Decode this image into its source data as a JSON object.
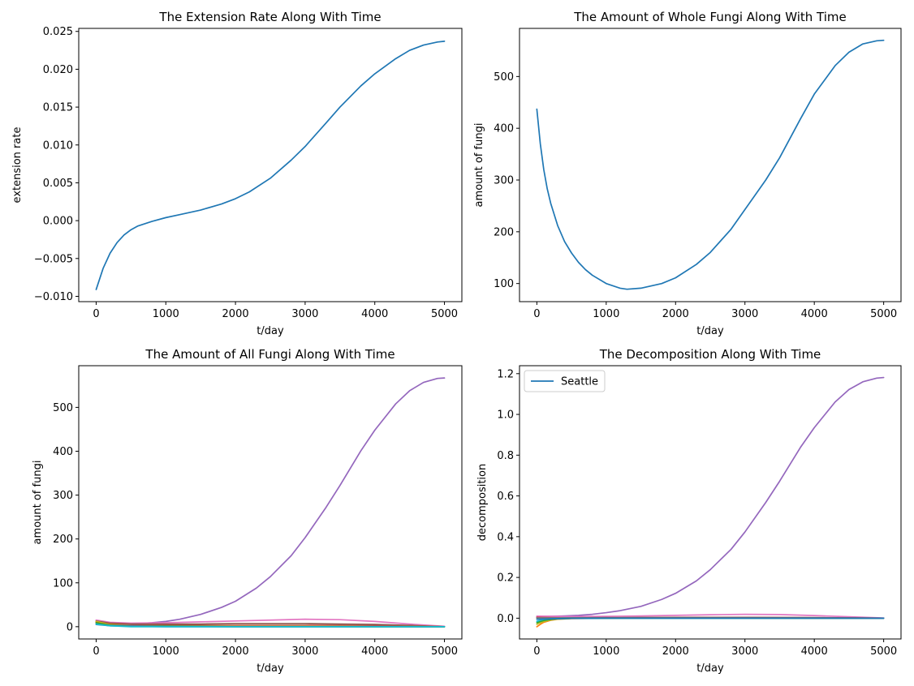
{
  "figure": {
    "background": "#ffffff"
  },
  "palette": [
    "#1f77b4",
    "#ff7f0e",
    "#2ca02c",
    "#d62728",
    "#9467bd",
    "#8c564b",
    "#e377c2",
    "#7f7f7f",
    "#bcbd22",
    "#17becf"
  ],
  "chart_data": [
    {
      "id": "ext",
      "type": "line",
      "title": "The Extension Rate Along With Time",
      "xlabel": "t/day",
      "ylabel": "extension rate",
      "xlim": [
        -250,
        5250
      ],
      "ylim": [
        -0.0107,
        0.0254
      ],
      "xticks": [
        0,
        1000,
        2000,
        3000,
        4000,
        5000
      ],
      "xtick_labels": [
        "0",
        "1000",
        "2000",
        "3000",
        "4000",
        "5000"
      ],
      "yticks": [
        -0.01,
        -0.005,
        0.0,
        0.005,
        0.01,
        0.015,
        0.02,
        0.025
      ],
      "ytick_labels": [
        "−0.010",
        "−0.005",
        "0.000",
        "0.005",
        "0.010",
        "0.015",
        "0.020",
        "0.025"
      ],
      "series": [
        {
          "color": "#1f77b4",
          "x": [
            0,
            100,
            200,
            300,
            400,
            500,
            600,
            800,
            1000,
            1200,
            1500,
            1800,
            2000,
            2200,
            2500,
            2800,
            3000,
            3300,
            3500,
            3800,
            4000,
            4300,
            4500,
            4700,
            4900,
            5000
          ],
          "y": [
            -0.0091,
            -0.0063,
            -0.0043,
            -0.0029,
            -0.0019,
            -0.0012,
            -0.0007,
            -0.0001,
            0.0004,
            0.0008,
            0.0014,
            0.0022,
            0.0029,
            0.0038,
            0.0056,
            0.008,
            0.0098,
            0.0129,
            0.015,
            0.0178,
            0.0194,
            0.0214,
            0.0225,
            0.0232,
            0.0236,
            0.0237
          ]
        }
      ]
    },
    {
      "id": "whole",
      "type": "line",
      "title": "The Amount of Whole Fungi Along With Time",
      "xlabel": "t/day",
      "ylabel": "amount of fungi",
      "xlim": [
        -250,
        5250
      ],
      "ylim": [
        65,
        593
      ],
      "xticks": [
        0,
        1000,
        2000,
        3000,
        4000,
        5000
      ],
      "xtick_labels": [
        "0",
        "1000",
        "2000",
        "3000",
        "4000",
        "5000"
      ],
      "yticks": [
        100,
        200,
        300,
        400,
        500
      ],
      "ytick_labels": [
        "100",
        "200",
        "300",
        "400",
        "500"
      ],
      "series": [
        {
          "color": "#1f77b4",
          "x": [
            0,
            50,
            100,
            150,
            200,
            300,
            400,
            500,
            600,
            700,
            800,
            1000,
            1200,
            1300,
            1500,
            1800,
            2000,
            2300,
            2500,
            2800,
            3000,
            3300,
            3500,
            3800,
            4000,
            4300,
            4500,
            4700,
            4900,
            5000
          ],
          "y": [
            437,
            370,
            320,
            283,
            255,
            212,
            181,
            159,
            141,
            127,
            116,
            100,
            91,
            89,
            91,
            100,
            111,
            137,
            160,
            205,
            243,
            300,
            343,
            418,
            466,
            521,
            547,
            563,
            569,
            570
          ]
        }
      ]
    },
    {
      "id": "all",
      "type": "line",
      "title": "The Amount of All Fungi Along With Time",
      "xlabel": "t/day",
      "ylabel": "amount of fungi",
      "xlim": [
        -250,
        5250
      ],
      "ylim": [
        -28,
        595
      ],
      "xticks": [
        0,
        1000,
        2000,
        3000,
        4000,
        5000
      ],
      "xtick_labels": [
        "0",
        "1000",
        "2000",
        "3000",
        "4000",
        "5000"
      ],
      "yticks": [
        0,
        100,
        200,
        300,
        400,
        500
      ],
      "ytick_labels": [
        "0",
        "100",
        "200",
        "300",
        "400",
        "500"
      ],
      "series": [
        {
          "color": "#9467bd",
          "x": [
            0,
            200,
            400,
            600,
            800,
            1000,
            1200,
            1500,
            1800,
            2000,
            2300,
            2500,
            2800,
            3000,
            3300,
            3500,
            3800,
            4000,
            4300,
            4500,
            4700,
            4900,
            5000
          ],
          "y": [
            8,
            6,
            6,
            7,
            9,
            12,
            17,
            28,
            44,
            58,
            88,
            114,
            162,
            203,
            272,
            322,
            401,
            448,
            508,
            538,
            557,
            566,
            567
          ]
        },
        {
          "color": "#e377c2",
          "x": [
            0,
            200,
            500,
            1000,
            1500,
            2000,
            2500,
            3000,
            3500,
            4000,
            4500,
            5000
          ],
          "y": [
            15,
            10,
            8,
            9,
            11,
            13,
            15,
            17,
            16,
            12,
            6,
            1
          ]
        },
        {
          "color": "#8c564b",
          "x": [
            0,
            200,
            500,
            1000,
            1500,
            2000,
            2500,
            3000,
            3500,
            4000,
            4500,
            5000
          ],
          "y": [
            13,
            8,
            6,
            6,
            6,
            7,
            7,
            7,
            6,
            5,
            3,
            0
          ]
        },
        {
          "color": "#d62728",
          "x": [
            0,
            200,
            500,
            1000,
            2000,
            3000,
            4000,
            5000
          ],
          "y": [
            11,
            6,
            4,
            3,
            3,
            3,
            2,
            0
          ]
        },
        {
          "color": "#bcbd22",
          "x": [
            0,
            200,
            500,
            1000,
            2000,
            3000,
            4000,
            5000
          ],
          "y": [
            12,
            5,
            3,
            2,
            2,
            2,
            1,
            0
          ]
        },
        {
          "color": "#7f7f7f",
          "x": [
            0,
            200,
            500,
            1000,
            2000,
            3000,
            4000,
            5000
          ],
          "y": [
            9,
            4,
            3,
            2,
            2,
            2,
            1,
            0
          ]
        },
        {
          "color": "#ff7f0e",
          "x": [
            0,
            200,
            500,
            1000,
            2000,
            3000,
            4000,
            5000
          ],
          "y": [
            10,
            3,
            1,
            1,
            1,
            1,
            0,
            0
          ]
        },
        {
          "color": "#2ca02c",
          "x": [
            0,
            200,
            500,
            1000,
            2000,
            3000,
            4000,
            5000
          ],
          "y": [
            9,
            3,
            1,
            1,
            0,
            0,
            0,
            0
          ]
        },
        {
          "color": "#1f77b4",
          "x": [
            0,
            200,
            500,
            1000,
            2000,
            3000,
            4000,
            5000
          ],
          "y": [
            5,
            2,
            1,
            0,
            0,
            0,
            0,
            0
          ]
        },
        {
          "color": "#17becf",
          "x": [
            0,
            200,
            500,
            1000,
            2000,
            3000,
            4000,
            5000
          ],
          "y": [
            6,
            2,
            0,
            0,
            0,
            0,
            0,
            0
          ]
        }
      ]
    },
    {
      "id": "decomp",
      "type": "line",
      "title": "The Decomposition Along With Time",
      "xlabel": "t/day",
      "ylabel": "decomposition",
      "xlim": [
        -250,
        5250
      ],
      "ylim": [
        -0.102,
        1.239
      ],
      "xticks": [
        0,
        1000,
        2000,
        3000,
        4000,
        5000
      ],
      "xtick_labels": [
        "0",
        "1000",
        "2000",
        "3000",
        "4000",
        "5000"
      ],
      "yticks": [
        0.0,
        0.2,
        0.4,
        0.6,
        0.8,
        1.0,
        1.2
      ],
      "ytick_labels": [
        "0.0",
        "0.2",
        "0.4",
        "0.6",
        "0.8",
        "1.0",
        "1.2"
      ],
      "legend": {
        "position": "upper-left",
        "entries": [
          {
            "label": "Seattle",
            "color": "#1f77b4"
          }
        ]
      },
      "series": [
        {
          "color": "#9467bd",
          "x": [
            0,
            200,
            400,
            600,
            800,
            1000,
            1200,
            1500,
            1800,
            2000,
            2300,
            2500,
            2800,
            3000,
            3300,
            3500,
            3800,
            4000,
            4300,
            4500,
            4700,
            4900,
            5000
          ],
          "y": [
            0.008,
            0.009,
            0.011,
            0.014,
            0.019,
            0.027,
            0.037,
            0.058,
            0.092,
            0.122,
            0.183,
            0.238,
            0.338,
            0.423,
            0.568,
            0.672,
            0.838,
            0.935,
            1.061,
            1.122,
            1.16,
            1.178,
            1.181
          ]
        },
        {
          "color": "#e377c2",
          "x": [
            0,
            500,
            1000,
            1500,
            2000,
            2500,
            3000,
            3500,
            4000,
            4500,
            5000
          ],
          "y": [
            0.01,
            0.008,
            0.009,
            0.011,
            0.014,
            0.017,
            0.019,
            0.018,
            0.013,
            0.007,
            0.001
          ]
        },
        {
          "color": "#ff7f0e",
          "x": [
            0,
            50,
            100,
            200,
            300,
            500,
            1000,
            2000,
            3000,
            4000,
            5000
          ],
          "y": [
            -0.042,
            -0.03,
            -0.02,
            -0.01,
            -0.005,
            -0.002,
            0.0,
            0.001,
            0.001,
            0.0,
            0.0
          ]
        },
        {
          "color": "#bcbd22",
          "x": [
            0,
            50,
            100,
            200,
            300,
            500,
            1000,
            2000,
            3000,
            4000,
            5000
          ],
          "y": [
            -0.03,
            -0.022,
            -0.016,
            -0.008,
            -0.004,
            -0.001,
            0.0,
            0.001,
            0.001,
            0.0,
            0.0
          ]
        },
        {
          "color": "#2ca02c",
          "x": [
            0,
            50,
            100,
            200,
            300,
            500,
            1000,
            2000,
            3000,
            4000,
            5000
          ],
          "y": [
            -0.022,
            -0.016,
            -0.011,
            -0.006,
            -0.003,
            -0.001,
            0.0,
            0.0,
            0.0,
            0.0,
            0.0
          ]
        },
        {
          "color": "#d62728",
          "x": [
            0,
            100,
            300,
            500,
            1000,
            2000,
            3000,
            4000,
            5000
          ],
          "y": [
            0.004,
            0.003,
            0.002,
            0.002,
            0.002,
            0.003,
            0.003,
            0.002,
            0.0
          ]
        },
        {
          "color": "#8c564b",
          "x": [
            0,
            100,
            300,
            500,
            1000,
            2000,
            3000,
            4000,
            5000
          ],
          "y": [
            0.002,
            0.002,
            0.002,
            0.002,
            0.003,
            0.004,
            0.004,
            0.003,
            0.0
          ]
        },
        {
          "color": "#7f7f7f",
          "x": [
            0,
            500,
            1000,
            2000,
            3000,
            4000,
            5000
          ],
          "y": [
            0.001,
            0.001,
            0.001,
            0.001,
            0.001,
            0.001,
            0.0
          ]
        },
        {
          "color": "#17becf",
          "x": [
            0,
            50,
            100,
            200,
            400,
            1000,
            2000,
            3000,
            4000,
            5000
          ],
          "y": [
            -0.015,
            -0.01,
            -0.006,
            -0.003,
            -0.001,
            0.0,
            0.0,
            0.0,
            0.0,
            0.0
          ]
        },
        {
          "color": "#1f77b4",
          "x": [
            0,
            200,
            500,
            1000,
            2000,
            3000,
            4000,
            5000
          ],
          "y": [
            -0.005,
            -0.003,
            -0.001,
            0.0,
            0.0,
            0.0,
            0.0,
            0.0
          ]
        }
      ]
    }
  ]
}
